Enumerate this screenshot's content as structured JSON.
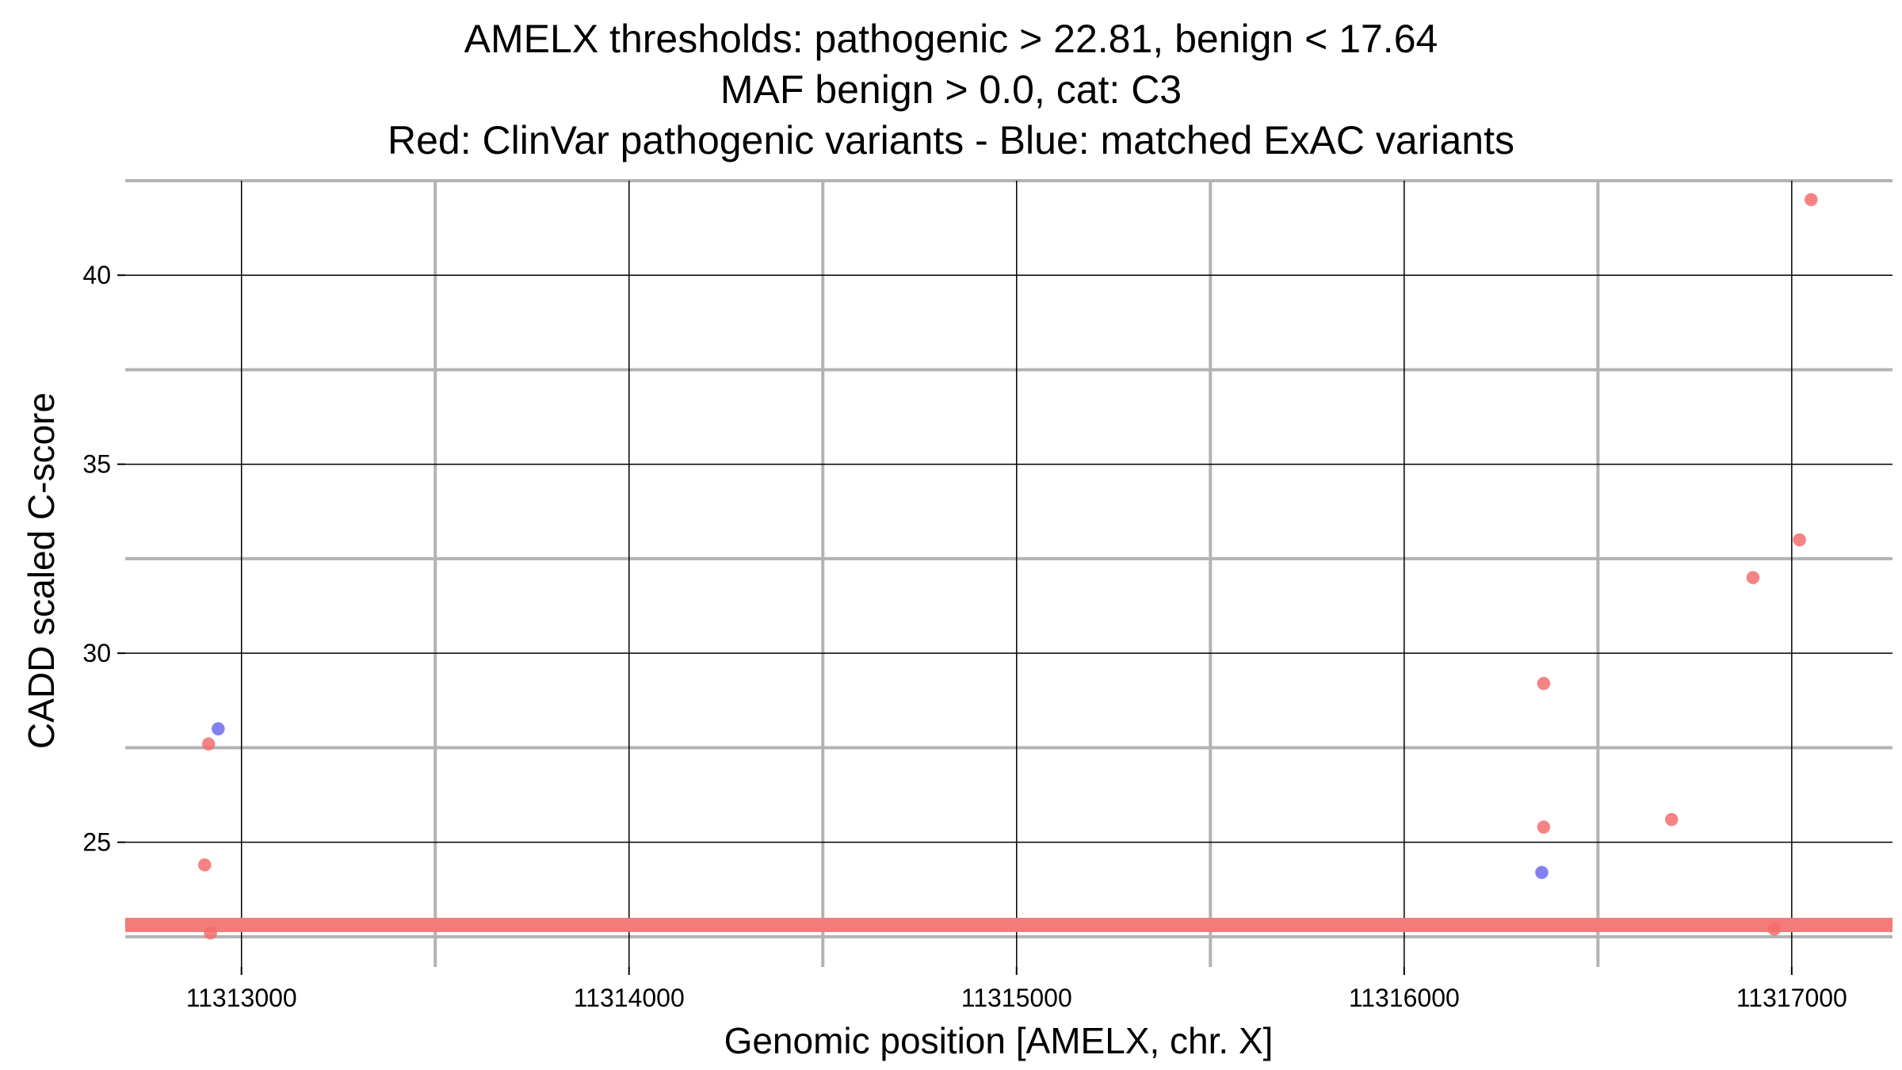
{
  "chart_data": {
    "type": "scatter",
    "title_lines": [
      "AMELX thresholds: pathogenic > 22.81, benign < 17.64",
      "MAF benign > 0.0, cat: C3",
      "Red: ClinVar pathogenic variants - Blue: matched ExAC variants"
    ],
    "xlabel": "Genomic position [AMELX, chr. X]",
    "ylabel": "CADD scaled C-score",
    "xlim": [
      11312700,
      11317260
    ],
    "ylim": [
      21.7,
      42.5
    ],
    "x_ticks": [
      11313000,
      11314000,
      11315000,
      11316000,
      11317000
    ],
    "x_minor_grid": [
      11313500,
      11314500,
      11315500,
      11316500
    ],
    "y_ticks": [
      25,
      30,
      35,
      40
    ],
    "y_minor_grid": [
      22.5,
      27.5,
      32.5,
      37.5,
      42.5
    ],
    "threshold_line": {
      "y": 22.81,
      "color": "#f47b7b"
    },
    "grid": true,
    "series": [
      {
        "color": "#f46d6d",
        "points": [
          {
            "x": 11312915,
            "y": 27.6
          },
          {
            "x": 11312905,
            "y": 24.4
          },
          {
            "x": 11312920,
            "y": 22.6
          },
          {
            "x": 11316360,
            "y": 29.2
          },
          {
            "x": 11316360,
            "y": 25.4
          },
          {
            "x": 11316690,
            "y": 25.6
          },
          {
            "x": 11316900,
            "y": 32.0
          },
          {
            "x": 11317020,
            "y": 33.0
          },
          {
            "x": 11317050,
            "y": 42.0
          },
          {
            "x": 11316955,
            "y": 22.7
          }
        ]
      },
      {
        "color": "#6b6bf0",
        "points": [
          {
            "x": 11312940,
            "y": 28.0
          },
          {
            "x": 11316355,
            "y": 24.2
          }
        ]
      }
    ]
  }
}
